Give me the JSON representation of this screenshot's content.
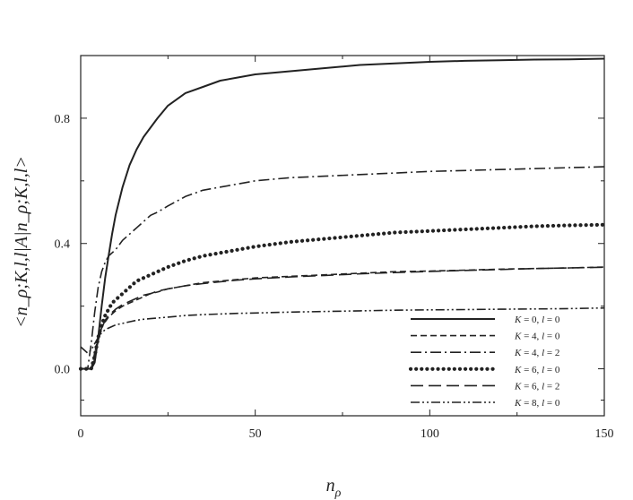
{
  "chart_data": {
    "type": "line",
    "title": "",
    "xlabel": "n_ρ",
    "xlabel_main": "n",
    "xlabel_sub": "ρ",
    "ylabel": "<n_ρ;K,l,l|A|n_ρ;K,l,l>",
    "xlim": [
      0,
      150
    ],
    "ylim": [
      -0.15,
      1.0
    ],
    "x_ticks": [
      0,
      50,
      100,
      150
    ],
    "x_tick_labels": [
      "0",
      "50",
      "100",
      "150"
    ],
    "y_ticks": [
      0.0,
      0.4,
      0.8
    ],
    "y_tick_labels": [
      "0.0",
      "0.4",
      "0.8"
    ],
    "grid": false,
    "legend_position": "bottom-right",
    "x": [
      0,
      2,
      3,
      4,
      5,
      6,
      7,
      8,
      9,
      10,
      12,
      14,
      16,
      18,
      20,
      22,
      25,
      30,
      35,
      40,
      45,
      50,
      60,
      70,
      80,
      90,
      100,
      110,
      120,
      130,
      140,
      150
    ],
    "series": [
      {
        "name": "K = 0, l = 0",
        "legend_parts": [
          "K",
          " = 0, ",
          "l",
          " = 0"
        ],
        "style": "solid",
        "values": [
          0,
          0,
          0,
          0.02,
          0.1,
          0.2,
          0.29,
          0.36,
          0.43,
          0.49,
          0.58,
          0.65,
          0.7,
          0.74,
          0.77,
          0.8,
          0.84,
          0.88,
          0.9,
          0.92,
          0.93,
          0.94,
          0.95,
          0.96,
          0.97,
          0.975,
          0.98,
          0.983,
          0.985,
          0.987,
          0.988,
          0.99
        ]
      },
      {
        "name": "K = 4, l = 0",
        "legend_parts": [
          "K",
          " = 4, ",
          "l",
          " = 0"
        ],
        "style": "dash",
        "values": [
          0,
          0,
          0,
          0.05,
          0.1,
          0.13,
          0.15,
          0.165,
          0.175,
          0.185,
          0.2,
          0.21,
          0.22,
          0.23,
          0.24,
          0.245,
          0.255,
          0.265,
          0.275,
          0.28,
          0.285,
          0.29,
          0.295,
          0.3,
          0.305,
          0.31,
          0.312,
          0.315,
          0.318,
          0.32,
          0.322,
          0.325
        ]
      },
      {
        "name": "K = 4, l = 2",
        "legend_parts": [
          "K",
          " = 4, ",
          "l",
          " = 2"
        ],
        "style": "dashdot",
        "values": [
          0,
          0,
          0.08,
          0.18,
          0.26,
          0.31,
          0.34,
          0.36,
          0.37,
          0.38,
          0.41,
          0.43,
          0.45,
          0.47,
          0.49,
          0.5,
          0.52,
          0.55,
          0.57,
          0.58,
          0.59,
          0.6,
          0.61,
          0.615,
          0.62,
          0.625,
          0.63,
          0.633,
          0.636,
          0.639,
          0.642,
          0.645
        ]
      },
      {
        "name": "K = 6, l = 0",
        "legend_parts": [
          "K",
          " = 6, ",
          "l",
          " = 0"
        ],
        "style": "dotted",
        "values": [
          0,
          0,
          0,
          0.04,
          0.1,
          0.14,
          0.17,
          0.19,
          0.21,
          0.22,
          0.24,
          0.26,
          0.28,
          0.29,
          0.3,
          0.31,
          0.325,
          0.345,
          0.36,
          0.37,
          0.38,
          0.39,
          0.405,
          0.415,
          0.425,
          0.435,
          0.44,
          0.445,
          0.45,
          0.455,
          0.458,
          0.46
        ]
      },
      {
        "name": "K = 6, l = 2",
        "legend_parts": [
          "K",
          " = 6, ",
          "l",
          " = 2"
        ],
        "style": "longdash",
        "values": [
          0,
          0,
          0,
          0.03,
          0.09,
          0.13,
          0.155,
          0.17,
          0.18,
          0.19,
          0.205,
          0.215,
          0.225,
          0.235,
          0.24,
          0.248,
          0.255,
          0.265,
          0.272,
          0.278,
          0.283,
          0.287,
          0.293,
          0.298,
          0.303,
          0.307,
          0.311,
          0.314,
          0.317,
          0.32,
          0.322,
          0.324
        ]
      },
      {
        "name": "K = 8, l = 0",
        "legend_parts": [
          "K",
          " = 8, ",
          "l",
          " = 0"
        ],
        "style": "dashdotdot",
        "values": [
          0.07,
          0.05,
          0.06,
          0.08,
          0.1,
          0.115,
          0.125,
          0.13,
          0.135,
          0.14,
          0.145,
          0.15,
          0.155,
          0.158,
          0.16,
          0.162,
          0.165,
          0.17,
          0.173,
          0.175,
          0.177,
          0.178,
          0.181,
          0.183,
          0.185,
          0.187,
          0.188,
          0.189,
          0.19,
          0.191,
          0.192,
          0.194
        ]
      }
    ]
  }
}
